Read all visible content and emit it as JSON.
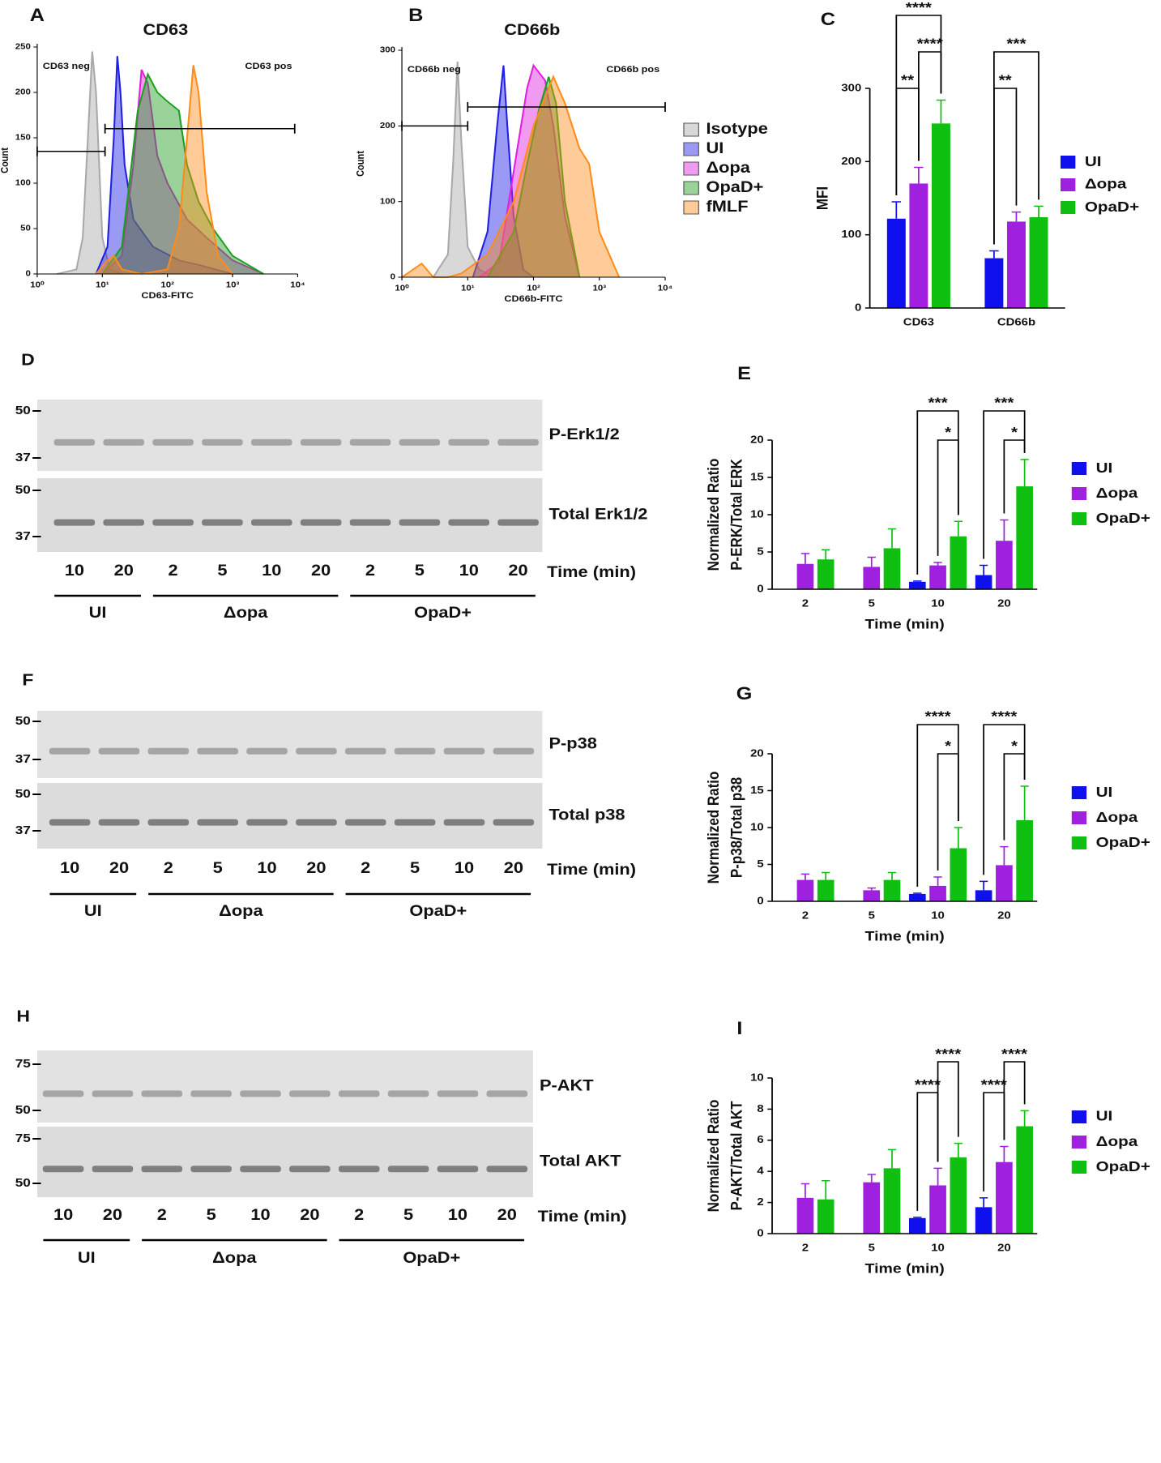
{
  "chart_data": [
    {
      "type": "area",
      "panel_label": "A",
      "title": "CD63",
      "x_label": "CD63-FITC",
      "y_label": "Count",
      "x_scale": "log",
      "xlim": [
        1,
        10000
      ],
      "xticks": [
        {
          "value": 1,
          "label": "10⁰"
        },
        {
          "value": 10,
          "label": "10¹"
        },
        {
          "value": 100,
          "label": "10²"
        },
        {
          "value": 1000,
          "label": "10³"
        },
        {
          "value": 10000,
          "label": "10⁴"
        }
      ],
      "ylim": [
        0,
        250
      ],
      "yticks": [
        0,
        50,
        100,
        150,
        200,
        250
      ],
      "legend": false,
      "gates": [
        {
          "label": "CD63 neg",
          "x": [
            1,
            11
          ],
          "y": 135
        },
        {
          "label": "CD63 pos",
          "x": [
            11,
            9000
          ],
          "y": 160
        }
      ],
      "series": [
        {
          "color": "#a9a9a9",
          "x": [
            2,
            4,
            5,
            6,
            7,
            8,
            10,
            13,
            20
          ],
          "values": [
            0,
            5,
            40,
            150,
            245,
            200,
            40,
            5,
            0
          ]
        },
        {
          "color": "#1f1fe6",
          "x": [
            8,
            12,
            15,
            17,
            19,
            22,
            30,
            60,
            150,
            300,
            1000
          ],
          "values": [
            0,
            30,
            150,
            240,
            200,
            120,
            60,
            30,
            15,
            10,
            0
          ]
        },
        {
          "color": "#e020e0",
          "x": [
            10,
            20,
            30,
            40,
            50,
            70,
            100,
            200,
            400,
            1000,
            3000
          ],
          "values": [
            0,
            20,
            120,
            225,
            210,
            130,
            100,
            60,
            40,
            15,
            0
          ]
        },
        {
          "color": "#1e9e1e",
          "x": [
            10,
            20,
            35,
            50,
            70,
            100,
            150,
            200,
            300,
            500,
            1000,
            3000
          ],
          "values": [
            0,
            30,
            180,
            220,
            200,
            190,
            180,
            120,
            80,
            50,
            20,
            0
          ]
        },
        {
          "color": "#ff8c1a",
          "x": [
            8,
            12,
            15,
            20,
            40,
            100,
            150,
            200,
            250,
            300,
            400,
            600,
            1000
          ],
          "values": [
            0,
            15,
            20,
            5,
            0,
            5,
            50,
            150,
            230,
            200,
            90,
            20,
            0
          ]
        }
      ]
    },
    {
      "type": "area",
      "panel_label": "B",
      "title": "CD66b",
      "x_label": "CD66b-FITC",
      "y_label": "Count",
      "x_scale": "log",
      "xlim": [
        1,
        10000
      ],
      "xticks": [
        {
          "value": 1,
          "label": "10⁰"
        },
        {
          "value": 10,
          "label": "10¹"
        },
        {
          "value": 100,
          "label": "10²"
        },
        {
          "value": 1000,
          "label": "10³"
        },
        {
          "value": 10000,
          "label": "10⁴"
        }
      ],
      "ylim": [
        0,
        300
      ],
      "yticks": [
        0,
        100,
        200,
        300
      ],
      "legend": true,
      "gates": [
        {
          "label": "CD66b neg",
          "x": [
            1,
            10
          ],
          "y": 200
        },
        {
          "label": "CD66b pos",
          "x": [
            10,
            10000
          ],
          "y": 225
        }
      ],
      "series": [
        {
          "name": "Isotype",
          "color": "#a9a9a9",
          "x": [
            3,
            5,
            6,
            7,
            8,
            10,
            15,
            25
          ],
          "values": [
            0,
            30,
            150,
            285,
            180,
            40,
            10,
            0
          ]
        },
        {
          "name": "UI",
          "color": "#1f1fe6",
          "x": [
            12,
            20,
            28,
            35,
            40,
            50,
            70,
            100
          ],
          "values": [
            0,
            60,
            200,
            280,
            200,
            80,
            10,
            0
          ]
        },
        {
          "name": "Δopa",
          "color": "#e020e0",
          "x": [
            15,
            30,
            50,
            80,
            100,
            150,
            200,
            300,
            500
          ],
          "values": [
            0,
            20,
            140,
            250,
            280,
            260,
            200,
            80,
            0
          ]
        },
        {
          "name": "OpaD+",
          "color": "#1e9e1e",
          "x": [
            20,
            50,
            80,
            120,
            170,
            220,
            300,
            500
          ],
          "values": [
            0,
            60,
            150,
            220,
            265,
            230,
            100,
            0
          ]
        },
        {
          "name": "fMLF",
          "color": "#ff8c1a",
          "x": [
            1,
            2,
            3,
            5,
            8,
            20,
            50,
            100,
            200,
            300,
            500,
            700,
            1000,
            2000
          ],
          "values": [
            0,
            18,
            0,
            0,
            5,
            30,
            100,
            200,
            265,
            230,
            170,
            150,
            60,
            0
          ]
        }
      ]
    },
    {
      "type": "bar",
      "panel_label": "C",
      "y_label": "MFI",
      "categories": [
        "CD63",
        "CD66b"
      ],
      "ylim": [
        0,
        300
      ],
      "yticks": [
        0,
        100,
        200,
        300
      ],
      "series": [
        {
          "name": "UI",
          "color": "#1010ee",
          "values": [
            122,
            68
          ],
          "errors": [
            23,
            10
          ]
        },
        {
          "name": "Δopa",
          "color": "#a020e0",
          "values": [
            170,
            118
          ],
          "errors": [
            22,
            13
          ]
        },
        {
          "name": "OpaD+",
          "color": "#10c010",
          "values": [
            252,
            124
          ],
          "errors": [
            32,
            15
          ]
        }
      ],
      "brackets": [
        {
          "category": 0,
          "from": 0,
          "to": 1,
          "label": "**"
        },
        {
          "category": 0,
          "from": 1,
          "to": 2,
          "label": "****"
        },
        {
          "category": 0,
          "from": 0,
          "to": 2,
          "label": "****"
        },
        {
          "category": 1,
          "from": 0,
          "to": 1,
          "label": "**"
        },
        {
          "category": 1,
          "from": 0,
          "to": 2,
          "label": "***"
        }
      ]
    },
    {
      "type": "bar",
      "panel_label": "E",
      "x_label": "Time (min)",
      "y_label": [
        "Normalized Ratio",
        "P-ERK/Total ERK"
      ],
      "categories": [
        "2",
        "5",
        "10",
        "20"
      ],
      "ylim": [
        0,
        20
      ],
      "yticks": [
        0,
        5,
        10,
        15,
        20
      ],
      "series": [
        {
          "name": "UI",
          "color": "#1010ee",
          "values": [
            null,
            null,
            1.0,
            1.9
          ],
          "errors": [
            null,
            null,
            0.1,
            1.3
          ]
        },
        {
          "name": "Δopa",
          "color": "#a020e0",
          "values": [
            3.4,
            3.0,
            3.2,
            6.5
          ],
          "errors": [
            1.4,
            1.3,
            0.4,
            2.8
          ]
        },
        {
          "name": "OpaD+",
          "color": "#10c010",
          "values": [
            4.0,
            5.5,
            7.1,
            13.8
          ],
          "errors": [
            1.3,
            2.6,
            2.0,
            3.6
          ]
        }
      ],
      "brackets": [
        {
          "category": 2,
          "from": 1,
          "to": 2,
          "label": "*"
        },
        {
          "category": 2,
          "from": 0,
          "to": 2,
          "label": "***"
        },
        {
          "category": 3,
          "from": 1,
          "to": 2,
          "label": "*"
        },
        {
          "category": 3,
          "from": 0,
          "to": 2,
          "label": "***"
        }
      ]
    },
    {
      "type": "bar",
      "panel_label": "G",
      "x_label": "Time (min)",
      "y_label": [
        "Normalized Ratio",
        "P-p38/Total p38"
      ],
      "categories": [
        "2",
        "5",
        "10",
        "20"
      ],
      "ylim": [
        0,
        20
      ],
      "yticks": [
        0,
        5,
        10,
        15,
        20
      ],
      "series": [
        {
          "name": "UI",
          "color": "#1010ee",
          "values": [
            null,
            null,
            1.0,
            1.5
          ],
          "errors": [
            null,
            null,
            0.1,
            1.2
          ]
        },
        {
          "name": "Δopa",
          "color": "#a020e0",
          "values": [
            2.9,
            1.5,
            2.1,
            4.9
          ],
          "errors": [
            0.8,
            0.3,
            1.2,
            2.5
          ]
        },
        {
          "name": "OpaD+",
          "color": "#10c010",
          "values": [
            2.9,
            2.9,
            7.2,
            11.0
          ],
          "errors": [
            1.0,
            1.0,
            2.8,
            4.6
          ]
        }
      ],
      "brackets": [
        {
          "category": 2,
          "from": 1,
          "to": 2,
          "label": "*"
        },
        {
          "category": 2,
          "from": 0,
          "to": 2,
          "label": "****"
        },
        {
          "category": 3,
          "from": 1,
          "to": 2,
          "label": "*"
        },
        {
          "category": 3,
          "from": 0,
          "to": 2,
          "label": "****"
        }
      ]
    },
    {
      "type": "bar",
      "panel_label": "I",
      "x_label": "Time (min)",
      "y_label": [
        "Normalized Ratio",
        "P-AKT/Total AKT"
      ],
      "categories": [
        "2",
        "5",
        "10",
        "20"
      ],
      "ylim": [
        0,
        10
      ],
      "yticks": [
        0,
        2,
        4,
        6,
        8,
        10
      ],
      "series": [
        {
          "name": "UI",
          "color": "#1010ee",
          "values": [
            null,
            null,
            1.0,
            1.7
          ],
          "errors": [
            null,
            null,
            0.05,
            0.6
          ]
        },
        {
          "name": "Δopa",
          "color": "#a020e0",
          "values": [
            2.3,
            3.3,
            3.1,
            4.6
          ],
          "errors": [
            0.9,
            0.5,
            1.1,
            1.0
          ]
        },
        {
          "name": "OpaD+",
          "color": "#10c010",
          "values": [
            2.2,
            4.2,
            4.9,
            6.9
          ],
          "errors": [
            1.2,
            1.2,
            0.9,
            1.0
          ]
        }
      ],
      "brackets": [
        {
          "category": 2,
          "from": 0,
          "to": 1,
          "label": "****"
        },
        {
          "category": 2,
          "from": 1,
          "to": 2,
          "label": "****"
        },
        {
          "category": 3,
          "from": 0,
          "to": 1,
          "label": "****"
        },
        {
          "category": 3,
          "from": 1,
          "to": 2,
          "label": "****"
        }
      ]
    }
  ],
  "blots": [
    {
      "panel_label": "D",
      "rows": [
        {
          "label": "P-Erk1/2",
          "markers": [
            50,
            37
          ]
        },
        {
          "label": "Total Erk1/2",
          "markers": [
            50,
            37
          ]
        }
      ],
      "lanes": [
        10,
        20,
        2,
        5,
        10,
        20,
        2,
        5,
        10,
        20
      ],
      "lane_label": "Time (min)",
      "groups": [
        {
          "label": "UI",
          "lanes": 2
        },
        {
          "label": "Δopa",
          "lanes": 4
        },
        {
          "label": "OpaD+",
          "lanes": 4
        }
      ]
    },
    {
      "panel_label": "F",
      "rows": [
        {
          "label": "P-p38",
          "markers": [
            50,
            37
          ]
        },
        {
          "label": "Total p38",
          "markers": [
            50,
            37
          ]
        }
      ],
      "lanes": [
        10,
        20,
        2,
        5,
        10,
        20,
        2,
        5,
        10,
        20
      ],
      "lane_label": "Time (min)",
      "groups": [
        {
          "label": "UI",
          "lanes": 2
        },
        {
          "label": "Δopa",
          "lanes": 4
        },
        {
          "label": "OpaD+",
          "lanes": 4
        }
      ]
    },
    {
      "panel_label": "H",
      "rows": [
        {
          "label": "P-AKT",
          "markers": [
            75,
            50
          ]
        },
        {
          "label": "Total AKT",
          "markers": [
            75,
            50
          ]
        }
      ],
      "lanes": [
        10,
        20,
        2,
        5,
        10,
        20,
        2,
        5,
        10,
        20
      ],
      "lane_label": "Time (min)",
      "groups": [
        {
          "label": "UI",
          "lanes": 2
        },
        {
          "label": "Δopa",
          "lanes": 4
        },
        {
          "label": "OpaD+",
          "lanes": 4
        }
      ]
    }
  ]
}
